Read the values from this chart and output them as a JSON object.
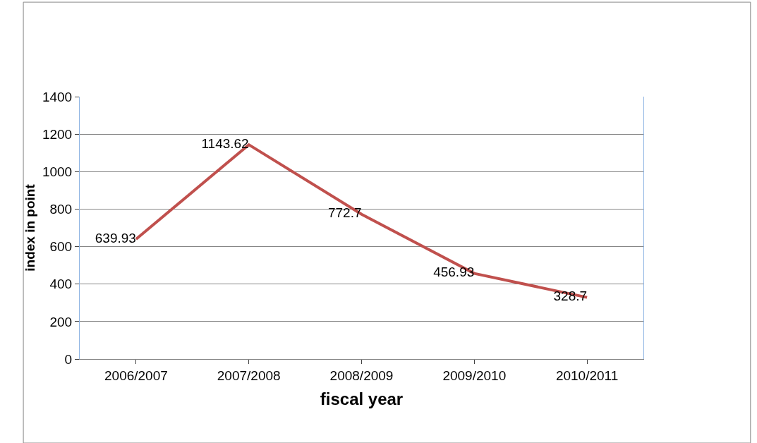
{
  "chart_data": {
    "type": "line",
    "xlabel": "fiscal year",
    "ylabel": "index in point",
    "categories": [
      "2006/2007",
      "2007/2008",
      "2008/2009",
      "2009/2010",
      "2010/2011"
    ],
    "series": [
      {
        "color": "#c0504d",
        "values": [
          639.93,
          1143.62,
          772.7,
          456.93,
          328.7
        ]
      }
    ],
    "ylim": [
      0,
      1400
    ],
    "yticks": [
      0,
      200,
      400,
      600,
      800,
      1000,
      1200,
      1400
    ],
    "grid": "y",
    "legend": false,
    "marker": "none",
    "line_style": "solid",
    "data_labels": true
  }
}
